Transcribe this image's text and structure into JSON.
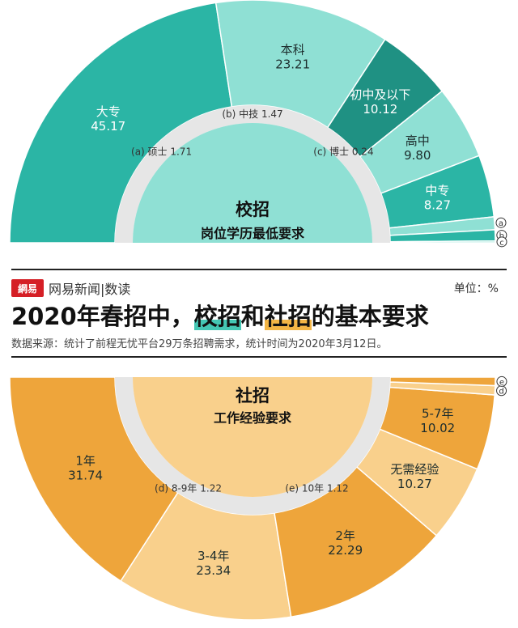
{
  "brand": {
    "logo_text": "網易",
    "name": "网易新闻|数读"
  },
  "unit": "单位：%",
  "title": {
    "part1": "2020年春招中，",
    "hl1": "校招",
    "part2": "和",
    "hl2": "社招",
    "part3": "的基本要求"
  },
  "source": "数据来源：统计了前程无忧平台29万条招聘需求，统计时间为2020年3月12日。",
  "colors": {
    "teal": "#2bb5a5",
    "teal_light": "#8fe0d4",
    "teal_dark": "#1f9183",
    "orange": "#eea53b",
    "orange_light": "#f9d08c",
    "inner_bg": "#e6e6e6"
  },
  "chart_data": [
    {
      "type": "pie",
      "title": "校招",
      "subtitle": "岗位学历最低要求",
      "slices": [
        {
          "label": "大专",
          "value": 45.17
        },
        {
          "label": "本科",
          "value": 23.21
        },
        {
          "label": "初中及以下",
          "value": 10.12
        },
        {
          "label": "高中",
          "value": 9.8
        },
        {
          "label": "中专",
          "value": 8.27
        },
        {
          "label": "硕士",
          "value": 1.71,
          "key": "a"
        },
        {
          "label": "中技",
          "value": 1.47,
          "key": "b"
        },
        {
          "label": "博士",
          "value": 0.24,
          "key": "c"
        }
      ],
      "inner_labels": [
        {
          "key": "a",
          "text": "硕士 1.71"
        },
        {
          "key": "b",
          "text": "中技 1.47"
        },
        {
          "key": "c",
          "text": "博士 0.24"
        }
      ]
    },
    {
      "type": "pie",
      "title": "社招",
      "subtitle": "工作经验要求",
      "slices": [
        {
          "label": "1年",
          "value": 31.74
        },
        {
          "label": "3-4年",
          "value": 23.34
        },
        {
          "label": "2年",
          "value": 22.29
        },
        {
          "label": "无需经验",
          "value": 10.27
        },
        {
          "label": "5-7年",
          "value": 10.02
        },
        {
          "label": "8-9年",
          "value": 1.22,
          "key": "d"
        },
        {
          "label": "10年",
          "value": 1.12,
          "key": "e"
        }
      ],
      "inner_labels": [
        {
          "key": "d",
          "text": "8-9年 1.22"
        },
        {
          "key": "e",
          "text": "10年 1.12"
        }
      ]
    }
  ]
}
